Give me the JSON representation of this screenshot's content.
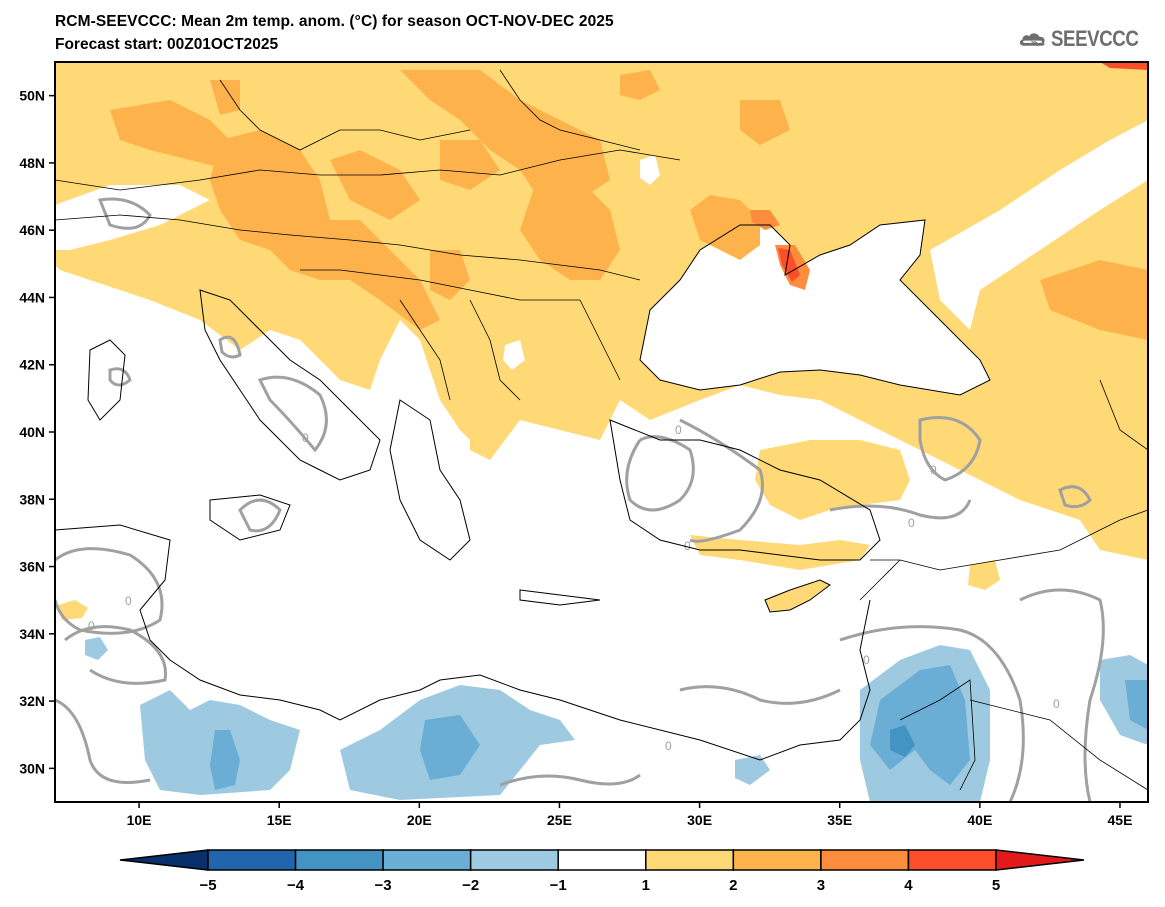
{
  "header": {
    "title": "RCM-SEEVCCC: Mean 2m temp. anom. (°C) for season OCT-NOV-DEC 2025",
    "subtitle": "Forecast start: 00Z01OCT2025",
    "logo_text": "SEEVCCC",
    "logo_icon": "cloud-icon"
  },
  "map": {
    "variable": "Mean 2m temperature anomaly",
    "units": "°C",
    "season": "OCT-NOV-DEC 2025",
    "forecast_start": "00Z01OCT2025",
    "lon_range": [
      7,
      46
    ],
    "lat_range": [
      29,
      51
    ],
    "lon_ticks": [
      {
        "value": 10,
        "label": "10E"
      },
      {
        "value": 15,
        "label": "15E"
      },
      {
        "value": 20,
        "label": "20E"
      },
      {
        "value": 25,
        "label": "25E"
      },
      {
        "value": 30,
        "label": "30E"
      },
      {
        "value": 35,
        "label": "35E"
      },
      {
        "value": 40,
        "label": "40E"
      },
      {
        "value": 45,
        "label": "45E"
      }
    ],
    "lat_ticks": [
      {
        "value": 30,
        "label": "30N"
      },
      {
        "value": 32,
        "label": "32N"
      },
      {
        "value": 34,
        "label": "34N"
      },
      {
        "value": 36,
        "label": "36N"
      },
      {
        "value": 38,
        "label": "38N"
      },
      {
        "value": 40,
        "label": "40N"
      },
      {
        "value": 42,
        "label": "42N"
      },
      {
        "value": 44,
        "label": "44N"
      },
      {
        "value": 46,
        "label": "46N"
      },
      {
        "value": 48,
        "label": "48N"
      },
      {
        "value": 50,
        "label": "50N"
      }
    ],
    "zero_contour_label": "0",
    "contour_color": "#a0a0a0",
    "coastline_color": "#000000"
  },
  "colorbar": {
    "labels": [
      "-5",
      "-4",
      "-3",
      "-2",
      "-1",
      "1",
      "2",
      "3",
      "4",
      "5"
    ],
    "bins": [
      {
        "range": "< -5",
        "color": "#08306b"
      },
      {
        "range": "-5 to -4",
        "color": "#2166ac"
      },
      {
        "range": "-4 to -3",
        "color": "#4393c3"
      },
      {
        "range": "-3 to -2",
        "color": "#6aaed6"
      },
      {
        "range": "-2 to -1",
        "color": "#9ecae1"
      },
      {
        "range": "-1 to 1",
        "color": "#ffffff"
      },
      {
        "range": "1 to 2",
        "color": "#fed976"
      },
      {
        "range": "2 to 3",
        "color": "#feb24c"
      },
      {
        "range": "3 to 4",
        "color": "#fd8d3c"
      },
      {
        "range": "4 to 5",
        "color": "#fc4e2a"
      },
      {
        "range": "> 5",
        "color": "#e31a1c"
      }
    ]
  },
  "field_colors": {
    "warm1": "#fed976",
    "warm2": "#feb24c",
    "warm3": "#fd8d3c",
    "warm4": "#fc4e2a",
    "cool1": "#9ecae1",
    "cool2": "#6aaed6",
    "cool3": "#4393c3"
  }
}
